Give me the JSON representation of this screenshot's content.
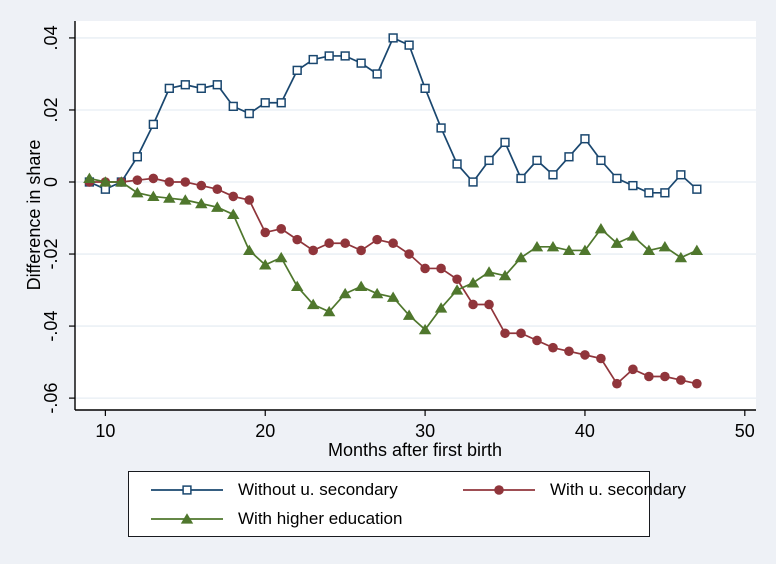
{
  "figure": {
    "background_color": "#eef1f6",
    "plot_background_color": "#ffffff",
    "grid_color": "#e7edf4",
    "axis_color": "#000000"
  },
  "chart_data": {
    "type": "line",
    "title": "",
    "xlabel": "Months after first birth",
    "ylabel": "Difference in share",
    "grid": true,
    "legend_position": "bottom",
    "xlim": [
      8.1,
      50.7
    ],
    "ylim": [
      -0.0633,
      0.0447
    ],
    "x_ticks": [
      10,
      20,
      30,
      40,
      50
    ],
    "y_ticks": [
      0.04,
      0.02,
      0,
      -0.02,
      -0.04,
      -0.06
    ],
    "y_tick_labels": [
      ".04",
      ".02",
      "0",
      "-.02",
      "-.04",
      "-.06"
    ],
    "x": [
      9,
      10,
      11,
      12,
      13,
      14,
      15,
      16,
      17,
      18,
      19,
      20,
      21,
      22,
      23,
      24,
      25,
      26,
      27,
      28,
      29,
      30,
      31,
      32,
      33,
      34,
      35,
      36,
      37,
      38,
      39,
      40,
      41,
      42,
      43,
      44,
      45,
      46,
      47
    ],
    "series": [
      {
        "name": "Without u. secondary",
        "color": "#1a476f",
        "marker": "square-open",
        "values": [
          0.0,
          -0.002,
          0.0,
          0.007,
          0.016,
          0.026,
          0.027,
          0.026,
          0.027,
          0.021,
          0.019,
          0.022,
          0.022,
          0.031,
          0.034,
          0.035,
          0.035,
          0.033,
          0.03,
          0.04,
          0.038,
          0.026,
          0.015,
          0.005,
          0.0,
          0.006,
          0.011,
          0.001,
          0.006,
          0.002,
          0.007,
          0.012,
          0.006,
          0.001,
          -0.001,
          -0.003,
          -0.003,
          0.002,
          -0.002
        ]
      },
      {
        "name": "With u. secondary",
        "color": "#90353b",
        "marker": "circle",
        "values": [
          0.0,
          0.0,
          0.0,
          0.0005,
          0.001,
          0.0,
          0.0,
          -0.001,
          -0.002,
          -0.004,
          -0.005,
          -0.014,
          -0.013,
          -0.016,
          -0.019,
          -0.017,
          -0.017,
          -0.019,
          -0.016,
          -0.017,
          -0.02,
          -0.024,
          -0.024,
          -0.027,
          -0.034,
          -0.034,
          -0.042,
          -0.042,
          -0.044,
          -0.046,
          -0.047,
          -0.048,
          -0.049,
          -0.056,
          -0.052,
          -0.054,
          -0.054,
          -0.055,
          -0.056
        ]
      },
      {
        "name": "With higher education",
        "color": "#4f772d",
        "marker": "triangle",
        "values": [
          0.001,
          0.0,
          0.0,
          -0.003,
          -0.004,
          -0.0045,
          -0.005,
          -0.006,
          -0.007,
          -0.009,
          -0.019,
          -0.023,
          -0.021,
          -0.029,
          -0.034,
          -0.036,
          -0.031,
          -0.029,
          -0.031,
          -0.032,
          -0.037,
          -0.041,
          -0.035,
          -0.03,
          -0.028,
          -0.025,
          -0.026,
          -0.021,
          -0.018,
          -0.018,
          -0.019,
          -0.019,
          -0.013,
          -0.017,
          -0.015,
          -0.019,
          -0.018,
          -0.021,
          -0.019
        ]
      }
    ]
  }
}
